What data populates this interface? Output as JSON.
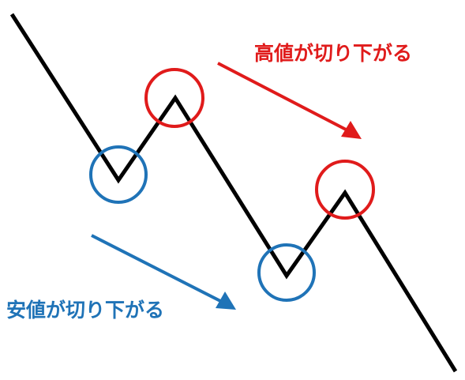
{
  "labels": {
    "highs": "高値が切り下がる",
    "lows": "安値が切り下がる"
  },
  "colors": {
    "price_line": "#000000",
    "highs": "#e01b1b",
    "lows": "#1f73b7",
    "background": "#ffffff"
  },
  "price_path": {
    "name": "downtrend-zigzag",
    "description_points": [
      "start",
      "low-1",
      "high-1",
      "low-2",
      "high-2",
      "end"
    ]
  }
}
